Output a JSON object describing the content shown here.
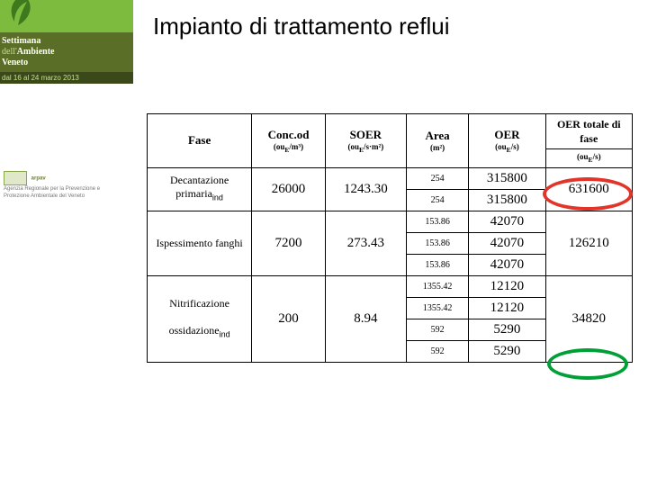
{
  "title": "Impianto di trattamento reflui",
  "headers": {
    "fase": "Fase",
    "conc": "Conc.od",
    "conc_unit_html": "(ou<sub>E</sub>/m³)",
    "soer": "SOER",
    "soer_unit_html": "(ou<sub>E</sub>/s·m²)",
    "area": "Area",
    "area_unit_html": "(m²)",
    "oer": "OER",
    "oer_unit_html": "(ou<sub>E</sub>/s)",
    "oer_tot": "OER totale di fase",
    "oer_tot_unit_html": "(ou<sub>E</sub>/s)"
  },
  "phases": [
    {
      "name_html": "Decantazione primaria<sub>ind</sub>",
      "conc": "26000",
      "soer": "1243.30",
      "areas": [
        "254",
        "254"
      ],
      "oers": [
        "315800",
        "315800"
      ],
      "total": "631600",
      "circle": "red"
    },
    {
      "name_html": "Ispessimento fanghi",
      "conc": "7200",
      "soer": "273.43",
      "areas": [
        "153.86",
        "153.86",
        "153.86"
      ],
      "oers": [
        "42070",
        "42070",
        "42070"
      ],
      "total": "126210",
      "circle": null
    },
    {
      "name_html": "Nitrificazione<br><br>ossidazione<sub>ind</sub>",
      "conc": "200",
      "soer": "8.94",
      "areas": [
        "1355.42",
        "1355.42",
        "592",
        "592"
      ],
      "oers": [
        "12120",
        "12120",
        "5290",
        "5290"
      ],
      "total": "34820",
      "circle": "green"
    }
  ],
  "sidebar": {
    "line1": "Settimana",
    "line2_html": "<span>dell'</span>Ambiente",
    "line3": "Veneto",
    "date": "dal 16 al 24 marzo 2013",
    "agency": "Agenzia Regionale per la Prevenzione e Protezione Ambientale del Veneto"
  },
  "colors": {
    "ring_red": "#e3342a",
    "ring_green": "#00a037"
  }
}
